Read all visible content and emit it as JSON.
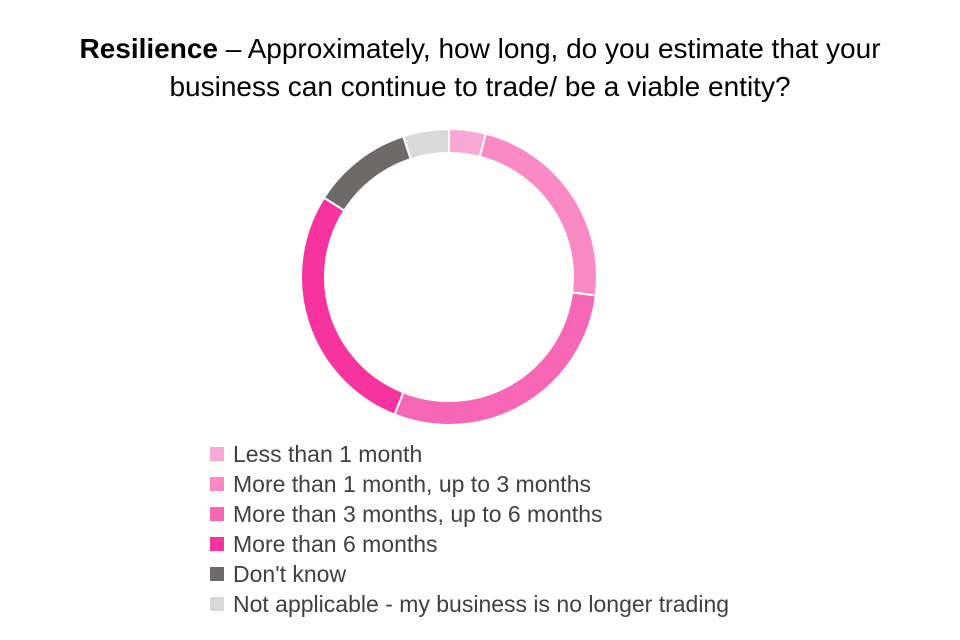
{
  "chart_data": {
    "type": "donut",
    "title_bold": "Resilience",
    "title_rest": " – Approximately, how long, do you estimate that your business can continue to trade/ be a viable entity?",
    "legend_position": "bottom",
    "categories": [
      "Less than 1 month",
      "More than 1 month, up to 3 months",
      "More than 3 months, up to 6 months",
      "More than 6 months",
      "Don't know",
      "Not applicable - my business is no longer trading"
    ],
    "values": [
      4,
      23,
      29,
      28,
      11,
      5
    ],
    "colors": [
      "#F9A8D4",
      "#FB89C4",
      "#F667B6",
      "#F6339E",
      "#6E6A6A",
      "#D9D9D9"
    ]
  }
}
